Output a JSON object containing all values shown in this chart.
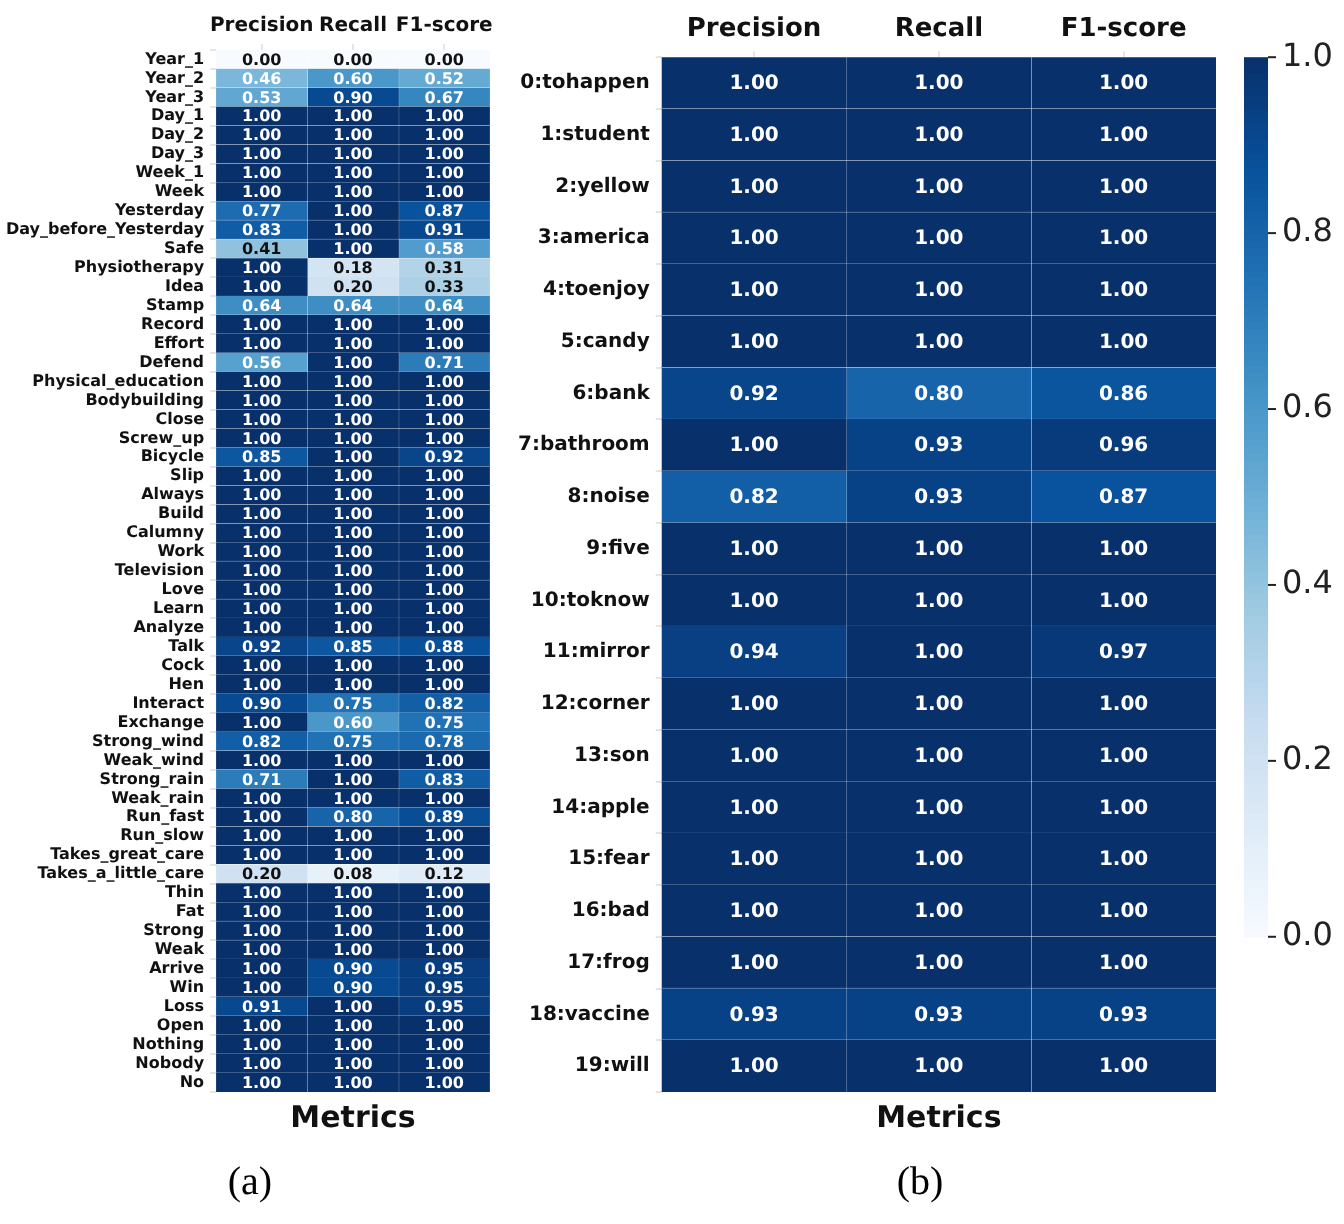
{
  "chart_data": [
    {
      "type": "heatmap",
      "xlabel": "Metrics",
      "annotations": [
        "(a)"
      ],
      "categories": [
        "Precision",
        "Recall",
        "F1-score"
      ],
      "y_categories": [
        "Year_1",
        "Year_2",
        "Year_3",
        "Day_1",
        "Day_2",
        "Day_3",
        "Week_1",
        "Week",
        "Yesterday",
        "Day_before_Yesterday",
        "Safe",
        "Physiotherapy",
        "Idea",
        "Stamp",
        "Record",
        "Effort",
        "Defend",
        "Physical_education",
        "Bodybuilding",
        "Close",
        "Screw_up",
        "Bicycle",
        "Slip",
        "Always",
        "Build",
        "Calumny",
        "Work",
        "Television",
        "Love",
        "Learn",
        "Analyze",
        "Talk",
        "Cock",
        "Hen",
        "Interact",
        "Exchange",
        "Strong_wind",
        "Weak_wind",
        "Strong_rain",
        "Weak_rain",
        "Run_fast",
        "Run_slow",
        "Takes_great_care",
        "Takes_a_little_care",
        "Thin",
        "Fat",
        "Strong",
        "Weak",
        "Arrive",
        "Win",
        "Loss",
        "Open",
        "Nothing",
        "Nobody",
        "No"
      ],
      "cells": [
        [
          0,
          0,
          0
        ],
        [
          0.46,
          0.6,
          0.52
        ],
        [
          0.53,
          0.9,
          0.67
        ],
        [
          1,
          1,
          1
        ],
        [
          1,
          1,
          1
        ],
        [
          1,
          1,
          1
        ],
        [
          1,
          1,
          1
        ],
        [
          1,
          1,
          1
        ],
        [
          0.77,
          1,
          0.87
        ],
        [
          0.83,
          1,
          0.91
        ],
        [
          0.41,
          1,
          0.58
        ],
        [
          1,
          0.18,
          0.31
        ],
        [
          1,
          0.2,
          0.33
        ],
        [
          0.64,
          0.64,
          0.64
        ],
        [
          1,
          1,
          1
        ],
        [
          1,
          1,
          1
        ],
        [
          0.56,
          1,
          0.71
        ],
        [
          1,
          1,
          1
        ],
        [
          1,
          1,
          1
        ],
        [
          1,
          1,
          1
        ],
        [
          1,
          1,
          1
        ],
        [
          0.85,
          1,
          0.92
        ],
        [
          1,
          1,
          1
        ],
        [
          1,
          1,
          1
        ],
        [
          1,
          1,
          1
        ],
        [
          1,
          1,
          1
        ],
        [
          1,
          1,
          1
        ],
        [
          1,
          1,
          1
        ],
        [
          1,
          1,
          1
        ],
        [
          1,
          1,
          1
        ],
        [
          1,
          1,
          1
        ],
        [
          0.92,
          0.85,
          0.88
        ],
        [
          1,
          1,
          1
        ],
        [
          1,
          1,
          1
        ],
        [
          0.9,
          0.75,
          0.82
        ],
        [
          1,
          0.6,
          0.75
        ],
        [
          0.82,
          0.75,
          0.78
        ],
        [
          1,
          1,
          1
        ],
        [
          0.71,
          1,
          0.83
        ],
        [
          1,
          1,
          1
        ],
        [
          1,
          0.8,
          0.89
        ],
        [
          1,
          1,
          1
        ],
        [
          1,
          1,
          1
        ],
        [
          0.2,
          0.08,
          0.12
        ],
        [
          1,
          1,
          1
        ],
        [
          1,
          1,
          1
        ],
        [
          1,
          1,
          1
        ],
        [
          1,
          1,
          1
        ],
        [
          1,
          0.9,
          0.95
        ],
        [
          1,
          0.9,
          0.95
        ],
        [
          0.91,
          1,
          0.95
        ],
        [
          1,
          1,
          1
        ],
        [
          1,
          1,
          1
        ],
        [
          1,
          1,
          1
        ],
        [
          1,
          1,
          1
        ]
      ],
      "cell_labels": [
        [
          "0.00",
          "0.00",
          "0.00"
        ],
        [
          "0.46",
          "0.60",
          "0.52"
        ],
        [
          "0.53",
          "0.90",
          "0.67"
        ],
        [
          "1.00",
          "1.00",
          "1.00"
        ],
        [
          "1.00",
          "1.00",
          "1.00"
        ],
        [
          "1.00",
          "1.00",
          "1.00"
        ],
        [
          "1.00",
          "1.00",
          "1.00"
        ],
        [
          "1.00",
          "1.00",
          "1.00"
        ],
        [
          "0.77",
          "1.00",
          "0.87"
        ],
        [
          "0.83",
          "1.00",
          "0.91"
        ],
        [
          "0.41",
          "1.00",
          "0.58"
        ],
        [
          "1.00",
          "0.18",
          "0.31"
        ],
        [
          "1.00",
          "0.20",
          "0.33"
        ],
        [
          "0.64",
          "0.64",
          "0.64"
        ],
        [
          "1.00",
          "1.00",
          "1.00"
        ],
        [
          "1.00",
          "1.00",
          "1.00"
        ],
        [
          "0.56",
          "1.00",
          "0.71"
        ],
        [
          "1.00",
          "1.00",
          "1.00"
        ],
        [
          "1.00",
          "1.00",
          "1.00"
        ],
        [
          "1.00",
          "1.00",
          "1.00"
        ],
        [
          "1.00",
          "1.00",
          "1.00"
        ],
        [
          "0.85",
          "1.00",
          "0.92"
        ],
        [
          "1.00",
          "1.00",
          "1.00"
        ],
        [
          "1.00",
          "1.00",
          "1.00"
        ],
        [
          "1.00",
          "1.00",
          "1.00"
        ],
        [
          "1.00",
          "1.00",
          "1.00"
        ],
        [
          "1.00",
          "1.00",
          "1.00"
        ],
        [
          "1.00",
          "1.00",
          "1.00"
        ],
        [
          "1.00",
          "1.00",
          "1.00"
        ],
        [
          "1.00",
          "1.00",
          "1.00"
        ],
        [
          "1.00",
          "1.00",
          "1.00"
        ],
        [
          "0.92",
          "0.85",
          "0.88"
        ],
        [
          "1.00",
          "1.00",
          "1.00"
        ],
        [
          "1.00",
          "1.00",
          "1.00"
        ],
        [
          "0.90",
          "0.75",
          "0.82"
        ],
        [
          "1.00",
          "0.60",
          "0.75"
        ],
        [
          "0.82",
          "0.75",
          "0.78"
        ],
        [
          "1.00",
          "1.00",
          "1.00"
        ],
        [
          "0.71",
          "1.00",
          "0.83"
        ],
        [
          "1.00",
          "1.00",
          "1.00"
        ],
        [
          "1.00",
          "0.80",
          "0.89"
        ],
        [
          "1.00",
          "1.00",
          "1.00"
        ],
        [
          "1.00",
          "1.00",
          "1.00"
        ],
        [
          "0.20",
          "0.08",
          "0.12"
        ],
        [
          "1.00",
          "1.00",
          "1.00"
        ],
        [
          "1.00",
          "1.00",
          "1.00"
        ],
        [
          "1.00",
          "1.00",
          "1.00"
        ],
        [
          "1.00",
          "1.00",
          "1.00"
        ],
        [
          "1.00",
          "0.90",
          "0.95"
        ],
        [
          "1.00",
          "0.90",
          "0.95"
        ],
        [
          "0.91",
          "1.00",
          "0.95"
        ],
        [
          "1.00",
          "1.00",
          "1.00"
        ],
        [
          "1.00",
          "1.00",
          "1.00"
        ],
        [
          "1.00",
          "1.00",
          "1.00"
        ],
        [
          "1.00",
          "1.00",
          "1.00"
        ]
      ]
    },
    {
      "type": "heatmap",
      "xlabel": "Metrics",
      "annotations": [
        "(b)"
      ],
      "categories": [
        "Precision",
        "Recall",
        "F1-score"
      ],
      "y_categories": [
        "0:tohappen",
        "1:student",
        "2:yellow",
        "3:america",
        "4:toenjoy",
        "5:candy",
        "6:bank",
        "7:bathroom",
        "8:noise",
        "9:five",
        "10:toknow",
        "11:mirror",
        "12:corner",
        "13:son",
        "14:apple",
        "15:fear",
        "16:bad",
        "17:frog",
        "18:vaccine",
        "19:will"
      ],
      "cells": [
        [
          1,
          1,
          1
        ],
        [
          1,
          1,
          1
        ],
        [
          1,
          1,
          1
        ],
        [
          1,
          1,
          1
        ],
        [
          1,
          1,
          1
        ],
        [
          1,
          1,
          1
        ],
        [
          0.92,
          0.8,
          0.86
        ],
        [
          1,
          0.93,
          0.96
        ],
        [
          0.82,
          0.93,
          0.87
        ],
        [
          1,
          1,
          1
        ],
        [
          1,
          1,
          1
        ],
        [
          0.94,
          1,
          0.97
        ],
        [
          1,
          1,
          1
        ],
        [
          1,
          1,
          1
        ],
        [
          1,
          1,
          1
        ],
        [
          1,
          1,
          1
        ],
        [
          1,
          1,
          1
        ],
        [
          1,
          1,
          1
        ],
        [
          0.93,
          0.93,
          0.93
        ],
        [
          1,
          1,
          1
        ]
      ],
      "cell_labels": [
        [
          "1.00",
          "1.00",
          "1.00"
        ],
        [
          "1.00",
          "1.00",
          "1.00"
        ],
        [
          "1.00",
          "1.00",
          "1.00"
        ],
        [
          "1.00",
          "1.00",
          "1.00"
        ],
        [
          "1.00",
          "1.00",
          "1.00"
        ],
        [
          "1.00",
          "1.00",
          "1.00"
        ],
        [
          "0.92",
          "0.80",
          "0.86"
        ],
        [
          "1.00",
          "0.93",
          "0.96"
        ],
        [
          "0.82",
          "0.93",
          "0.87"
        ],
        [
          "1.00",
          "1.00",
          "1.00"
        ],
        [
          "1.00",
          "1.00",
          "1.00"
        ],
        [
          "0.94",
          "1.00",
          "0.97"
        ],
        [
          "1.00",
          "1.00",
          "1.00"
        ],
        [
          "1.00",
          "1.00",
          "1.00"
        ],
        [
          "1.00",
          "1.00",
          "1.00"
        ],
        [
          "1.00",
          "1.00",
          "1.00"
        ],
        [
          "1.00",
          "1.00",
          "1.00"
        ],
        [
          "1.00",
          "1.00",
          "1.00"
        ],
        [
          "0.93",
          "0.93",
          "0.93"
        ],
        [
          "1.00",
          "1.00",
          "1.00"
        ]
      ],
      "clim": [
        0,
        1
      ],
      "cticks": [
        {
          "value": 0,
          "label": "0.0"
        },
        {
          "value": 0.2,
          "label": "0.2"
        },
        {
          "value": 0.4,
          "label": "0.4"
        },
        {
          "value": 0.6,
          "label": "0.6"
        },
        {
          "value": 0.8,
          "label": "0.8"
        },
        {
          "value": 1,
          "label": "1.0"
        }
      ]
    }
  ]
}
